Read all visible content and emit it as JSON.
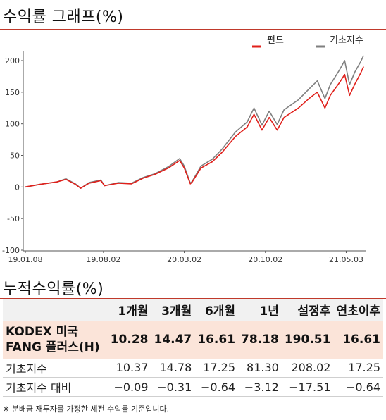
{
  "chart_title": "수익률 그래프(%)",
  "returns_title": "누적수익률(%)",
  "footnote": "※ 분배금 재투자를 가정한 세전 수익률 기준입니다.",
  "colors": {
    "fund": "#e0201b",
    "benchmark": "#7f7f7f",
    "accent": "#c0392b",
    "fund_row_bg": "#fbe4d9"
  },
  "chart_data": {
    "type": "line",
    "title": "수익률 그래프(%)",
    "ylim": [
      -100,
      200
    ],
    "yticks": [
      "200",
      "150",
      "100",
      "50",
      "0",
      "-50",
      "-100"
    ],
    "yticks_values": [
      200,
      150,
      100,
      50,
      0,
      -50,
      -100
    ],
    "xticks": [
      "19.01.08",
      "19.08.02",
      "20.03.02",
      "20.10.02",
      "21.05.03"
    ],
    "xticks_values": [
      "2019-01-08",
      "2019-08-02",
      "2020-03-02",
      "2020-10-02",
      "2021-05-03"
    ],
    "legend": {
      "position": "top-right",
      "fund": "펀드",
      "benchmark": "기초지수"
    },
    "series": [
      {
        "name": "펀드",
        "color": "#e0201b",
        "points": [
          [
            "2019-01-08",
            0
          ],
          [
            "2019-02-15",
            4
          ],
          [
            "2019-04-01",
            8
          ],
          [
            "2019-04-25",
            12
          ],
          [
            "2019-05-20",
            4
          ],
          [
            "2019-06-03",
            -2
          ],
          [
            "2019-06-25",
            6
          ],
          [
            "2019-07-26",
            10
          ],
          [
            "2019-08-05",
            2
          ],
          [
            "2019-09-10",
            6
          ],
          [
            "2019-10-15",
            5
          ],
          [
            "2019-11-15",
            14
          ],
          [
            "2019-12-16",
            20
          ],
          [
            "2020-01-20",
            30
          ],
          [
            "2020-02-19",
            42
          ],
          [
            "2020-03-02",
            30
          ],
          [
            "2020-03-18",
            5
          ],
          [
            "2020-03-23",
            8
          ],
          [
            "2020-04-15",
            30
          ],
          [
            "2020-05-15",
            40
          ],
          [
            "2020-06-10",
            55
          ],
          [
            "2020-07-15",
            80
          ],
          [
            "2020-08-15",
            95
          ],
          [
            "2020-09-02",
            115
          ],
          [
            "2020-09-23",
            90
          ],
          [
            "2020-10-12",
            110
          ],
          [
            "2020-11-02",
            90
          ],
          [
            "2020-11-20",
            110
          ],
          [
            "2020-12-28",
            125
          ],
          [
            "2021-01-25",
            140
          ],
          [
            "2021-02-16",
            150
          ],
          [
            "2021-03-08",
            125
          ],
          [
            "2021-03-22",
            145
          ],
          [
            "2021-04-15",
            165
          ],
          [
            "2021-04-29",
            178
          ],
          [
            "2021-05-12",
            145
          ],
          [
            "2021-05-26",
            163
          ],
          [
            "2021-06-10",
            180
          ],
          [
            "2021-06-18",
            190.51
          ]
        ]
      },
      {
        "name": "기초지수",
        "color": "#7f7f7f",
        "points": [
          [
            "2019-01-08",
            0
          ],
          [
            "2019-02-15",
            4
          ],
          [
            "2019-04-01",
            8
          ],
          [
            "2019-04-25",
            13
          ],
          [
            "2019-05-20",
            5
          ],
          [
            "2019-06-03",
            -2
          ],
          [
            "2019-06-25",
            7
          ],
          [
            "2019-07-26",
            11
          ],
          [
            "2019-08-05",
            2
          ],
          [
            "2019-09-10",
            7
          ],
          [
            "2019-10-15",
            6
          ],
          [
            "2019-11-15",
            15
          ],
          [
            "2019-12-16",
            21
          ],
          [
            "2020-01-20",
            32
          ],
          [
            "2020-02-19",
            45
          ],
          [
            "2020-03-02",
            33
          ],
          [
            "2020-03-18",
            6
          ],
          [
            "2020-03-23",
            9
          ],
          [
            "2020-04-15",
            33
          ],
          [
            "2020-05-15",
            44
          ],
          [
            "2020-06-10",
            60
          ],
          [
            "2020-07-15",
            87
          ],
          [
            "2020-08-15",
            103
          ],
          [
            "2020-09-02",
            125
          ],
          [
            "2020-09-23",
            98
          ],
          [
            "2020-10-12",
            120
          ],
          [
            "2020-11-02",
            99
          ],
          [
            "2020-11-20",
            122
          ],
          [
            "2020-12-28",
            138
          ],
          [
            "2021-01-25",
            155
          ],
          [
            "2021-02-16",
            168
          ],
          [
            "2021-03-08",
            140
          ],
          [
            "2021-03-22",
            162
          ],
          [
            "2021-04-15",
            185
          ],
          [
            "2021-04-29",
            200
          ],
          [
            "2021-05-12",
            162
          ],
          [
            "2021-05-26",
            182
          ],
          [
            "2021-06-10",
            198
          ],
          [
            "2021-06-18",
            208.02
          ]
        ]
      }
    ]
  },
  "returns_table": {
    "columns": [
      "",
      "1개월",
      "3개월",
      "6개월",
      "1년",
      "설정후",
      "연초이후"
    ],
    "rows": [
      {
        "label": "KODEX 미국FANG 플러스(H)",
        "values": [
          "10.28",
          "14.47",
          "16.61",
          "78.18",
          "190.51",
          "16.61"
        ]
      },
      {
        "label": "기초지수",
        "values": [
          "10.37",
          "14.78",
          "17.25",
          "81.30",
          "208.02",
          "17.25"
        ]
      },
      {
        "label": "기초지수 대비",
        "values": [
          "−0.09",
          "−0.31",
          "−0.64",
          "−3.12",
          "−17.51",
          "−0.64"
        ]
      }
    ]
  }
}
